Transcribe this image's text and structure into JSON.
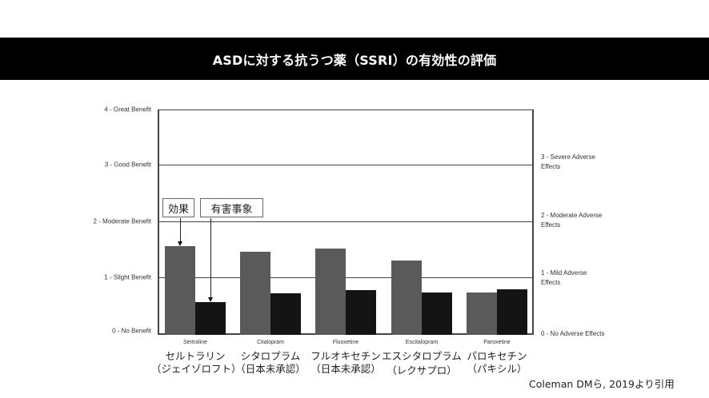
{
  "slide": {
    "title": "ASDに対する抗うつ薬（SSRI）の有効性の評価",
    "citation": "Coleman DMら, 2019より引用",
    "colors": {
      "title_bg": "#000000",
      "title_text": "#ffffff",
      "benefit_bar": "#5a5a5a",
      "adverse_bar": "#141414"
    }
  },
  "annotations": {
    "benefit_label": "効果",
    "adverse_label": "有害事象"
  },
  "axes": {
    "left_ticks": [
      "0 - No Benefit",
      "1 - Slight Benefit",
      "2 - Moderate Benefit",
      "3 - Good Benefit",
      "4 - Great Benefit"
    ],
    "right_ticks": [
      "0 - No Adverse Effects",
      "1 - Mild Adverse Effects",
      "2 - Moderate Adverse Effects",
      "3 - Severe Adverse Effects"
    ],
    "right_ticks_line1": [
      "0 - No Adverse Effects",
      "1 - Mild Adverse",
      "2 - Moderate Adverse",
      "3 - Severe Adverse"
    ],
    "right_ticks_line2": [
      "",
      "Effects",
      "Effects",
      "Effects"
    ]
  },
  "drugs": [
    {
      "en": "Sertraline",
      "jp1": "セルトラリン",
      "jp2": "（ジェイゾロフト）"
    },
    {
      "en": "Citalopram",
      "jp1": "シタロプラム",
      "jp2": "（日本未承認）"
    },
    {
      "en": "Fluoxetine",
      "jp1": "フルオキセチン",
      "jp2": "（日本未承認）"
    },
    {
      "en": "Escitalopram",
      "jp1": "エスシタロプラム",
      "jp2": "（レクサプロ）"
    },
    {
      "en": "Paroxetine",
      "jp1": "パロキセチン",
      "jp2": "（パキシル）"
    }
  ],
  "chart_data": {
    "type": "bar",
    "title": "ASDに対する抗うつ薬（SSRI）の有効性の評価",
    "categories": [
      "Sertraline",
      "Citalopram",
      "Fluoxetine",
      "Escitalopram",
      "Paroxetine"
    ],
    "categories_jp": [
      "セルトラリン（ジェイゾロフト）",
      "シタロプラム（日本未承認）",
      "フルオキセチン（日本未承認）",
      "エスシタロプラム（レクサプロ）",
      "パロキセチン（パキシル）"
    ],
    "series": [
      {
        "name": "効果",
        "axis": "left",
        "color": "#5a5a5a",
        "values": [
          1.57,
          1.48,
          1.53,
          1.32,
          0.75
        ]
      },
      {
        "name": "有害事象",
        "axis": "right",
        "color": "#141414",
        "values": [
          0.58,
          0.74,
          0.79,
          0.75,
          0.81
        ]
      }
    ],
    "ylabel_left_ticks": [
      "0 - No Benefit",
      "1 - Slight Benefit",
      "2 - Moderate Benefit",
      "3 - Good Benefit",
      "4 - Great Benefit"
    ],
    "ylabel_right_ticks": [
      "0 - No Adverse Effects",
      "1 - Mild Adverse Effects",
      "2 - Moderate Adverse Effects",
      "3 - Severe Adverse Effects"
    ],
    "ylim_left": [
      0,
      4
    ],
    "ylim_right": [
      0,
      4
    ],
    "grid": true,
    "annotations": [
      "効果",
      "有害事象"
    ],
    "source": "Coleman DMら, 2019より引用"
  }
}
